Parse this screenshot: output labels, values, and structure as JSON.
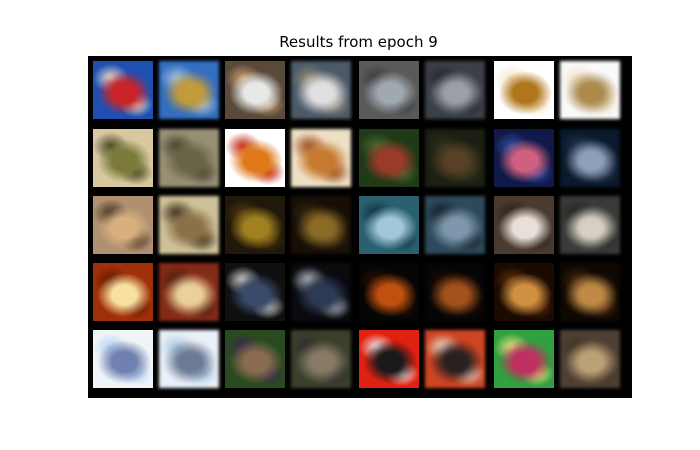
{
  "figure": {
    "title": "Results from epoch 9"
  },
  "grid": {
    "rows": 5,
    "cols": 8,
    "column_roles": [
      "original",
      "reconstruction",
      "original",
      "reconstruction",
      "original",
      "reconstruction",
      "original",
      "reconstruction"
    ],
    "tiles": [
      [
        {
          "bg": "#1f4fb0",
          "mid": "#c8242a",
          "accent": "#f0e6d0"
        },
        {
          "bg": "#2a6fd0",
          "mid": "#c99b2a",
          "accent": "#a8c8f0"
        },
        {
          "bg": "#5a4a3a",
          "mid": "#e8e8e8",
          "accent": "#c8a070"
        },
        {
          "bg": "#4a5a6a",
          "mid": "#e0e0e0",
          "accent": "#9a8a70"
        },
        {
          "bg": "#5a5a5a",
          "mid": "#a0a8b0",
          "accent": "#3a3a3a"
        },
        {
          "bg": "#3a4048",
          "mid": "#9aa0a8",
          "accent": "#202428"
        },
        {
          "bg": "#ffffff",
          "mid": "#b0761e",
          "accent": "#f6e6c8"
        },
        {
          "bg": "#fafafa",
          "mid": "#b08a40",
          "accent": "#f0e0c0"
        }
      ],
      [
        {
          "bg": "#d8c8a0",
          "mid": "#7a7a3a",
          "accent": "#404020"
        },
        {
          "bg": "#9a9070",
          "mid": "#6a6440",
          "accent": "#403c28"
        },
        {
          "bg": "#ffffff",
          "mid": "#e07818",
          "accent": "#c02010"
        },
        {
          "bg": "#f0e0c0",
          "mid": "#d07820",
          "accent": "#a04010"
        },
        {
          "bg": "#203a18",
          "mid": "#9a3a2a",
          "accent": "#4a6a2a"
        },
        {
          "bg": "#1a2010",
          "mid": "#5a4020",
          "accent": "#2a3018"
        },
        {
          "bg": "#101a4a",
          "mid": "#d06080",
          "accent": "#3050a0"
        },
        {
          "bg": "#081a30",
          "mid": "#8aa0c0",
          "accent": "#203050"
        }
      ],
      [
        {
          "bg": "#b09070",
          "mid": "#d8b080",
          "accent": "#403020"
        },
        {
          "bg": "#d0c090",
          "mid": "#907040",
          "accent": "#302010"
        },
        {
          "bg": "#201808",
          "mid": "#a08020",
          "accent": "#503810"
        },
        {
          "bg": "#180f05",
          "mid": "#906a1a",
          "accent": "#3a2808"
        },
        {
          "bg": "#2a6070",
          "mid": "#a0c8d8",
          "accent": "#103040"
        },
        {
          "bg": "#2a4a60",
          "mid": "#7a98b0",
          "accent": "#0a1a28"
        },
        {
          "bg": "#4a3a30",
          "mid": "#e8e0d8",
          "accent": "#2a2018"
        },
        {
          "bg": "#3a3a38",
          "mid": "#d8d0c0",
          "accent": "#202020"
        }
      ],
      [
        {
          "bg": "#a03008",
          "mid": "#f8e0a0",
          "accent": "#601800"
        },
        {
          "bg": "#902810",
          "mid": "#f0d090",
          "accent": "#501808"
        },
        {
          "bg": "#101010",
          "mid": "#3a4a6a",
          "accent": "#d8d8d8"
        },
        {
          "bg": "#0a0a10",
          "mid": "#2a3a58",
          "accent": "#c0c8d0"
        },
        {
          "bg": "#050505",
          "mid": "#c05010",
          "accent": "#301000"
        },
        {
          "bg": "#050505",
          "mid": "#b05010",
          "accent": "#200a00"
        },
        {
          "bg": "#1a0a00",
          "mid": "#d09040",
          "accent": "#603010"
        },
        {
          "bg": "#100800",
          "mid": "#c88838",
          "accent": "#502808"
        }
      ],
      [
        {
          "bg": "#f0f4f8",
          "mid": "#7080b0",
          "accent": "#b0d0f0"
        },
        {
          "bg": "#e8f0f8",
          "mid": "#6a7a9a",
          "accent": "#a0c8e8"
        },
        {
          "bg": "#2a4a20",
          "mid": "#8a6a50",
          "accent": "#3a2a50"
        },
        {
          "bg": "#3a4028",
          "mid": "#8a7a60",
          "accent": "#2a2a30"
        },
        {
          "bg": "#e02010",
          "mid": "#1a1a1a",
          "accent": "#f0f0f0"
        },
        {
          "bg": "#e04018",
          "mid": "#2a2020",
          "accent": "#f0e0d0"
        },
        {
          "bg": "#30a040",
          "mid": "#c03060",
          "accent": "#f0e080"
        },
        {
          "bg": "#504030",
          "mid": "#c0a070",
          "accent": "#403020"
        }
      ]
    ]
  }
}
